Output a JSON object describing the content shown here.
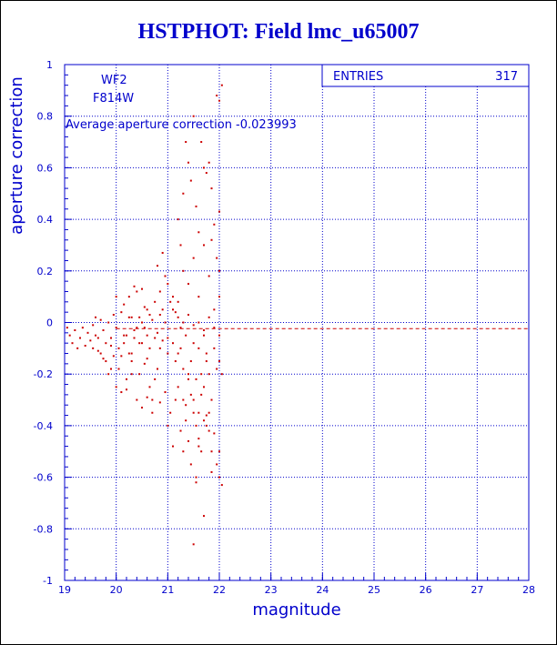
{
  "title": "HSTPHOT: Field lmc_u65007",
  "colors": {
    "axis": "#0000cc",
    "grid": "#0000cc",
    "points": "#cc0000",
    "mean_line": "#cc0000"
  },
  "chart_data": {
    "type": "scatter",
    "xlabel": "magnitude",
    "ylabel": "aperture correction",
    "xlim": [
      19,
      28
    ],
    "ylim": [
      -1,
      1
    ],
    "xticks": [
      "19",
      "20",
      "21",
      "22",
      "23",
      "24",
      "25",
      "26",
      "27",
      "28"
    ],
    "yticks": [
      "-1",
      "-0.8",
      "-0.6",
      "-0.4",
      "-0.2",
      "0",
      "0.2",
      "0.4",
      "0.6",
      "0.8",
      "1"
    ],
    "grid": true,
    "stats_box": {
      "label": "ENTRIES",
      "value": "317"
    },
    "annotations": [
      "WF2",
      "F814W",
      "Average aperture correction -0.023993"
    ],
    "mean_y": -0.023993,
    "points": [
      [
        19.05,
        -0.02
      ],
      [
        19.1,
        -0.05
      ],
      [
        19.15,
        -0.08
      ],
      [
        19.2,
        -0.03
      ],
      [
        19.25,
        -0.1
      ],
      [
        19.3,
        -0.06
      ],
      [
        19.35,
        -0.02
      ],
      [
        19.4,
        -0.09
      ],
      [
        19.45,
        -0.04
      ],
      [
        19.5,
        -0.07
      ],
      [
        19.55,
        -0.01
      ],
      [
        19.6,
        -0.05
      ],
      [
        19.65,
        -0.11
      ],
      [
        19.7,
        0.01
      ],
      [
        19.75,
        -0.03
      ],
      [
        19.8,
        -0.08
      ],
      [
        19.85,
        0.0
      ],
      [
        19.9,
        -0.06
      ],
      [
        19.95,
        -0.13
      ],
      [
        20.0,
        -0.02
      ],
      [
        19.6,
        0.02
      ],
      [
        19.7,
        -0.12
      ],
      [
        19.8,
        -0.15
      ],
      [
        19.9,
        -0.18
      ],
      [
        19.85,
        -0.2
      ],
      [
        19.95,
        0.03
      ],
      [
        20.05,
        -0.1
      ],
      [
        20.1,
        0.04
      ],
      [
        20.15,
        -0.05
      ],
      [
        20.2,
        -0.22
      ],
      [
        20.25,
        0.02
      ],
      [
        20.3,
        -0.12
      ],
      [
        20.35,
        -0.03
      ],
      [
        20.4,
        0.12
      ],
      [
        20.45,
        -0.2
      ],
      [
        20.5,
        -0.08
      ],
      [
        20.55,
        0.06
      ],
      [
        20.6,
        -0.14
      ],
      [
        20.65,
        -0.25
      ],
      [
        20.7,
        -0.3
      ],
      [
        20.75,
        0.08
      ],
      [
        20.8,
        -0.18
      ],
      [
        20.85,
        -0.1
      ],
      [
        20.9,
        0.05
      ],
      [
        20.95,
        -0.27
      ],
      [
        21.0,
        -0.06
      ],
      [
        20.4,
        -0.3
      ],
      [
        20.5,
        -0.33
      ],
      [
        20.6,
        -0.29
      ],
      [
        20.7,
        -0.35
      ],
      [
        20.2,
        -0.26
      ],
      [
        20.3,
        -0.2
      ],
      [
        20.45,
        -0.08
      ],
      [
        20.55,
        -0.16
      ],
      [
        20.65,
        -0.1
      ],
      [
        20.75,
        -0.22
      ],
      [
        20.85,
        -0.31
      ],
      [
        20.25,
        0.1
      ],
      [
        20.35,
        0.14
      ],
      [
        20.5,
        0.13
      ],
      [
        20.6,
        0.05
      ],
      [
        20.0,
        0.1
      ],
      [
        20.05,
        -0.18
      ],
      [
        20.1,
        -0.13
      ],
      [
        20.15,
        0.07
      ],
      [
        19.9,
        -0.09
      ],
      [
        20.0,
        -0.25
      ],
      [
        20.1,
        -0.27
      ],
      [
        20.2,
        -0.05
      ],
      [
        20.3,
        -0.15
      ],
      [
        20.8,
        0.22
      ],
      [
        20.85,
        0.12
      ],
      [
        20.9,
        0.27
      ],
      [
        20.95,
        0.18
      ],
      [
        21.0,
        0.15
      ],
      [
        21.05,
        0.08
      ],
      [
        21.1,
        0.1
      ],
      [
        21.15,
        0.04
      ],
      [
        21.2,
        0.02
      ],
      [
        21.25,
        -0.02
      ],
      [
        21.0,
        -0.4
      ],
      [
        21.05,
        -0.35
      ],
      [
        21.1,
        -0.48
      ],
      [
        21.15,
        -0.3
      ],
      [
        21.2,
        -0.25
      ],
      [
        21.25,
        -0.42
      ],
      [
        21.3,
        -0.5
      ],
      [
        21.35,
        -0.38
      ],
      [
        21.4,
        -0.46
      ],
      [
        21.45,
        -0.55
      ],
      [
        21.5,
        -0.3
      ],
      [
        21.55,
        -0.6
      ],
      [
        21.6,
        -0.45
      ],
      [
        21.65,
        -0.5
      ],
      [
        21.7,
        -0.75
      ],
      [
        21.75,
        -0.4
      ],
      [
        21.8,
        -0.35
      ],
      [
        21.85,
        -0.58
      ],
      [
        21.5,
        -0.86
      ],
      [
        21.55,
        -0.62
      ],
      [
        21.2,
        0.4
      ],
      [
        21.25,
        0.3
      ],
      [
        21.3,
        0.5
      ],
      [
        21.35,
        0.7
      ],
      [
        21.4,
        0.62
      ],
      [
        21.45,
        0.55
      ],
      [
        21.5,
        0.8
      ],
      [
        21.55,
        0.45
      ],
      [
        21.6,
        0.35
      ],
      [
        21.65,
        0.7
      ],
      [
        21.7,
        0.6
      ],
      [
        21.75,
        0.58
      ],
      [
        21.8,
        0.62
      ],
      [
        21.85,
        0.52
      ],
      [
        21.9,
        0.38
      ],
      [
        21.95,
        0.88
      ],
      [
        22.0,
        0.86
      ],
      [
        22.05,
        0.92
      ],
      [
        21.3,
        0.2
      ],
      [
        21.4,
        0.15
      ],
      [
        21.5,
        0.25
      ],
      [
        21.6,
        0.1
      ],
      [
        21.7,
        0.3
      ],
      [
        21.8,
        0.18
      ],
      [
        21.9,
        0.05
      ],
      [
        22.0,
        0.43
      ],
      [
        22.0,
        0.2
      ],
      [
        22.0,
        0.1
      ],
      [
        21.95,
        0.25
      ],
      [
        21.85,
        0.32
      ],
      [
        21.1,
        -0.08
      ],
      [
        21.15,
        -0.15
      ],
      [
        21.2,
        -0.12
      ],
      [
        21.25,
        -0.1
      ],
      [
        21.3,
        -0.18
      ],
      [
        21.35,
        -0.05
      ],
      [
        21.4,
        -0.2
      ],
      [
        21.45,
        -0.15
      ],
      [
        21.5,
        -0.08
      ],
      [
        21.55,
        -0.22
      ],
      [
        21.6,
        -0.1
      ],
      [
        21.65,
        -0.28
      ],
      [
        21.7,
        -0.05
      ],
      [
        21.75,
        -0.15
      ],
      [
        21.8,
        -0.2
      ],
      [
        21.85,
        -0.3
      ],
      [
        21.9,
        -0.1
      ],
      [
        21.95,
        -0.18
      ],
      [
        22.0,
        -0.15
      ],
      [
        22.05,
        -0.2
      ],
      [
        21.1,
        0.05
      ],
      [
        21.2,
        0.08
      ],
      [
        21.3,
        0.0
      ],
      [
        21.4,
        0.03
      ],
      [
        21.5,
        -0.01
      ],
      [
        21.6,
        0.0
      ],
      [
        21.7,
        -0.03
      ],
      [
        21.8,
        0.02
      ],
      [
        21.9,
        -0.02
      ],
      [
        22.0,
        -0.05
      ],
      [
        21.6,
        -0.35
      ],
      [
        21.7,
        -0.38
      ],
      [
        21.75,
        -0.36
      ],
      [
        21.8,
        -0.42
      ],
      [
        21.9,
        -0.43
      ],
      [
        22.0,
        -0.5
      ],
      [
        21.85,
        -0.5
      ],
      [
        21.95,
        -0.55
      ],
      [
        22.0,
        -0.6
      ],
      [
        22.05,
        -0.63
      ],
      [
        21.3,
        -0.3
      ],
      [
        21.35,
        -0.32
      ],
      [
        21.4,
        -0.22
      ],
      [
        21.45,
        -0.28
      ],
      [
        21.5,
        -0.35
      ],
      [
        21.55,
        -0.4
      ],
      [
        21.6,
        -0.48
      ],
      [
        21.65,
        -0.2
      ],
      [
        21.7,
        -0.25
      ],
      [
        21.75,
        -0.12
      ],
      [
        20.3,
        0.02
      ],
      [
        20.4,
        -0.02
      ],
      [
        20.5,
        0.0
      ],
      [
        20.6,
        -0.05
      ],
      [
        20.7,
        0.01
      ],
      [
        20.8,
        -0.04
      ],
      [
        20.9,
        -0.07
      ],
      [
        21.0,
        -0.12
      ],
      [
        20.95,
        0.0
      ],
      [
        20.85,
        0.03
      ],
      [
        20.15,
        -0.08
      ],
      [
        20.25,
        -0.12
      ],
      [
        20.35,
        -0.06
      ],
      [
        20.45,
        0.02
      ],
      [
        20.55,
        -0.02
      ],
      [
        20.65,
        0.03
      ],
      [
        20.75,
        -0.06
      ],
      [
        19.75,
        -0.14
      ],
      [
        19.65,
        -0.06
      ],
      [
        19.55,
        -0.1
      ]
    ]
  }
}
